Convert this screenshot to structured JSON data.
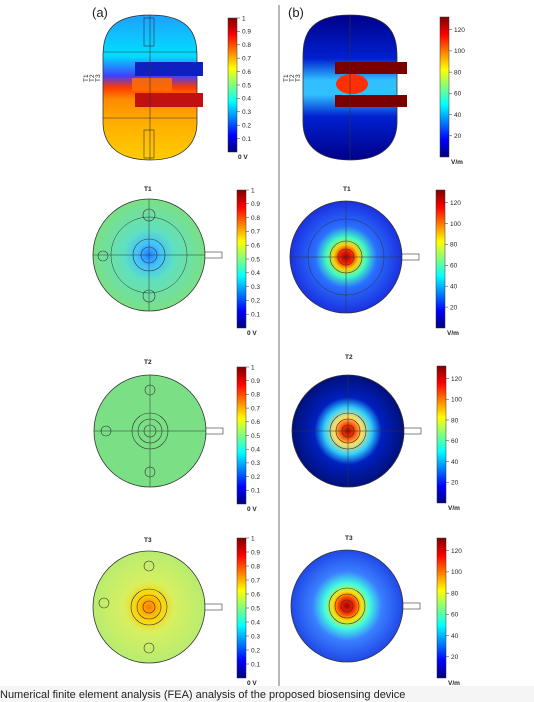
{
  "figure": {
    "panel_a": "(a)",
    "panel_b": "(b)",
    "caption": "Numerical finite element analysis (FEA) analysis of the proposed biosensing device"
  },
  "sections": [
    {
      "id": "T1",
      "label": "T1"
    },
    {
      "id": "T2",
      "label": "T2"
    },
    {
      "id": "T3",
      "label": "T3"
    }
  ],
  "side_view_labels": [
    "T1",
    "T2",
    "T3"
  ],
  "colorbars": {
    "potential": {
      "ticks": [
        "1",
        "0.9",
        "0.8",
        "0.7",
        "0.6",
        "0.5",
        "0.4",
        "0.3",
        "0.2",
        "0.1"
      ],
      "unit_label": "0 V"
    },
    "field": {
      "ticks": [
        "120",
        "100",
        "80",
        "60",
        "40",
        "20"
      ],
      "unit_label": "V/m"
    }
  },
  "colors": {
    "jet": [
      "#00007f",
      "#0000ff",
      "#007fff",
      "#00ffff",
      "#7fff7f",
      "#ffff00",
      "#ff7f00",
      "#ff0000",
      "#7f0000"
    ],
    "potential_bg": "#7be085",
    "divider": "#888888"
  }
}
